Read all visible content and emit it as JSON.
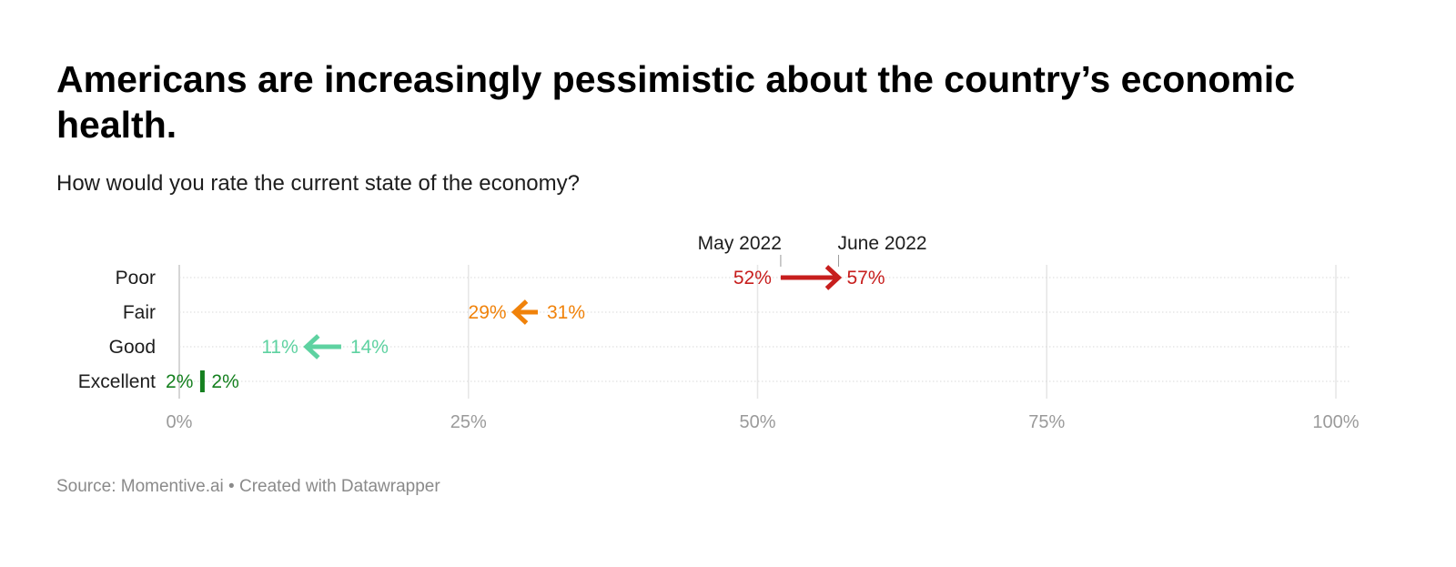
{
  "title": "Americans are increasingly pessimistic about the country’s economic health.",
  "subtitle": "How would you rate the current state of the economy?",
  "footer": {
    "source_label": "Source:",
    "source": "Momentive.ai",
    "separator": "•",
    "credit": "Created with Datawrapper"
  },
  "chart_data": {
    "type": "arrow",
    "categories": [
      "Poor",
      "Fair",
      "Good",
      "Excellent"
    ],
    "series": [
      {
        "name": "May 2022",
        "values": [
          52,
          31,
          14,
          2
        ]
      },
      {
        "name": "June 2022",
        "values": [
          57,
          29,
          11,
          2
        ]
      }
    ],
    "value_labels": {
      "May 2022": [
        "52%",
        "31%",
        "14%",
        "2%"
      ],
      "June 2022": [
        "57%",
        "29%",
        "11%",
        "2%"
      ]
    },
    "x_ticks": [
      0,
      25,
      50,
      75,
      100
    ],
    "x_tick_labels": [
      "0%",
      "25%",
      "50%",
      "75%",
      "100%"
    ],
    "xlim": [
      0,
      100
    ],
    "grid": true,
    "colors": {
      "Poor": "#c71e1d",
      "Fair": "#f0820a",
      "Good": "#5ed2a1",
      "Excellent": "#15801f"
    }
  }
}
